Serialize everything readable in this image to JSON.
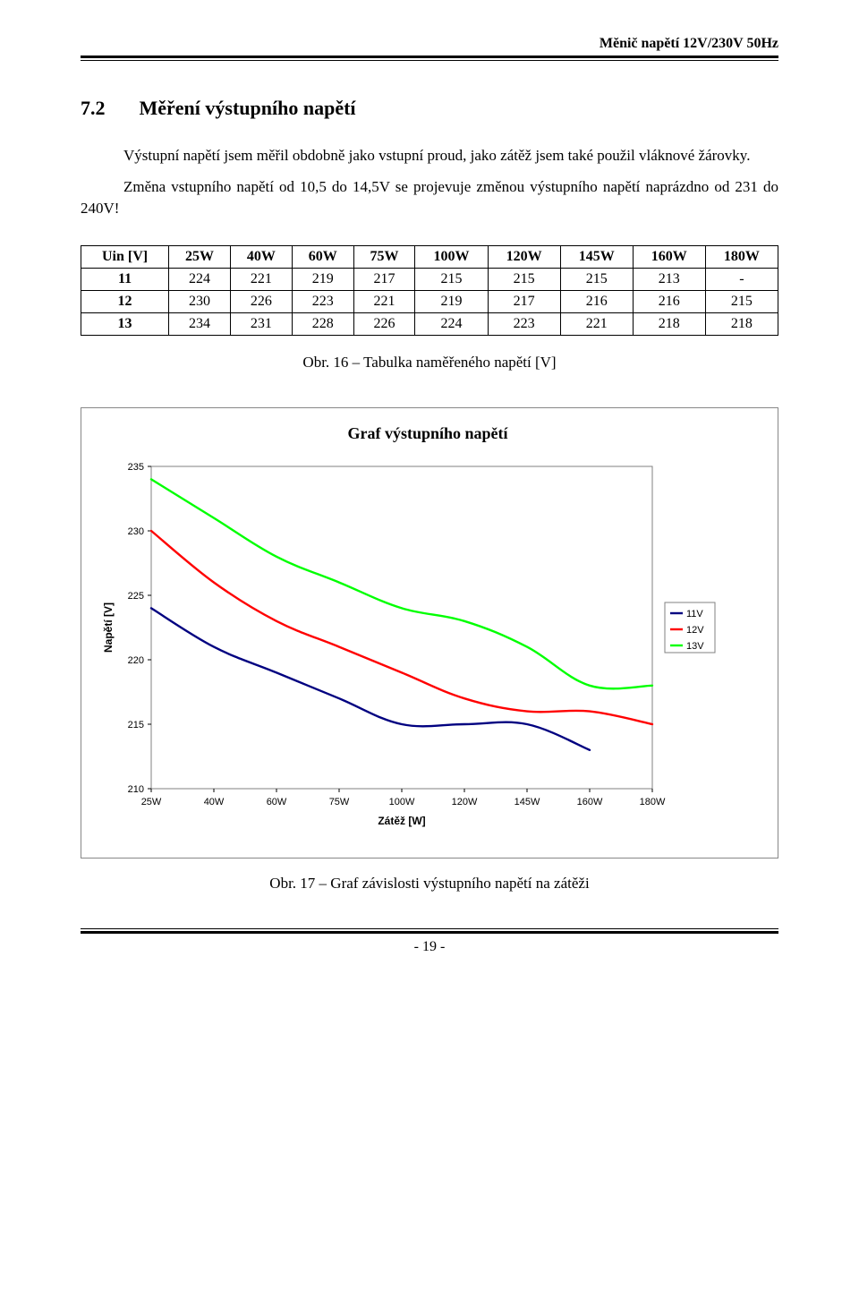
{
  "header": {
    "running": "Měnič napětí 12V/230V 50Hz"
  },
  "section": {
    "number": "7.2",
    "title": "Měření výstupního napětí"
  },
  "paragraphs": {
    "p1": "Výstupní napětí jsem měřil obdobně jako vstupní proud, jako zátěž jsem také použil vláknové žárovky.",
    "p2": "Změna vstupního napětí od 10,5 do 14,5V se projevuje změnou výstupního napětí naprázdno od 231 do 240V!"
  },
  "table": {
    "columns": [
      "Uin [V]",
      "25W",
      "40W",
      "60W",
      "75W",
      "100W",
      "120W",
      "145W",
      "160W",
      "180W"
    ],
    "rows": [
      [
        "11",
        "224",
        "221",
        "219",
        "217",
        "215",
        "215",
        "215",
        "213",
        "-"
      ],
      [
        "12",
        "230",
        "226",
        "223",
        "221",
        "219",
        "217",
        "216",
        "216",
        "215"
      ],
      [
        "13",
        "234",
        "231",
        "228",
        "226",
        "224",
        "223",
        "221",
        "218",
        "218"
      ]
    ],
    "caption": "Obr. 16 – Tabulka naměřeného napětí [V]"
  },
  "chart": {
    "type": "line",
    "title": "Graf výstupního napětí",
    "xlabel": "Zátěž [W]",
    "ylabel": "Napětí [V]",
    "x_categories": [
      "25W",
      "40W",
      "60W",
      "75W",
      "100W",
      "120W",
      "145W",
      "160W",
      "180W"
    ],
    "ylim": [
      210,
      235
    ],
    "ytick_step": 5,
    "background_color": "#ffffff",
    "plot_border_color": "#808080",
    "grid_color": "#000000",
    "axis_fontsize": 11,
    "title_fontsize": 15,
    "line_width": 2.4,
    "series": [
      {
        "name": "11V",
        "color": "#000080",
        "values": [
          224,
          221,
          219,
          217,
          215,
          215,
          215,
          213,
          null
        ]
      },
      {
        "name": "12V",
        "color": "#ff0000",
        "values": [
          230,
          226,
          223,
          221,
          219,
          217,
          216,
          216,
          215
        ]
      },
      {
        "name": "13V",
        "color": "#00ff00",
        "values": [
          234,
          231,
          228,
          226,
          224,
          223,
          221,
          218,
          218
        ]
      }
    ],
    "legend": {
      "border_color": "#808080",
      "bg": "#ffffff",
      "fontsize": 11
    },
    "caption": "Obr. 17 – Graf závislosti výstupního napětí na zátěži"
  },
  "footer": {
    "page": "- 19 -"
  }
}
